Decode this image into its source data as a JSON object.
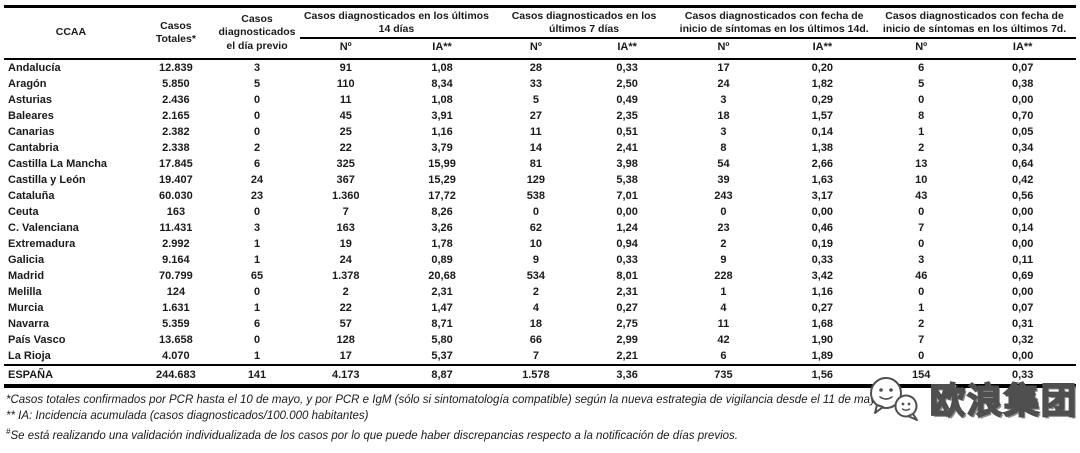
{
  "table": {
    "columns": [
      {
        "label": "CCAA"
      },
      {
        "label": "Casos Totales*"
      },
      {
        "label": "Casos diagnosticados el día previo"
      },
      {
        "label": "Casos diagnosticados en los últimos 14 días",
        "sub": [
          "Nº",
          "IA**"
        ]
      },
      {
        "label": "Casos diagnosticados en los últimos 7 días",
        "sub": [
          "Nº",
          "IA**"
        ]
      },
      {
        "label": "Casos diagnosticados con fecha de inicio de síntomas en los últimos 14d.",
        "sub": [
          "Nº",
          "IA**"
        ]
      },
      {
        "label": "Casos diagnosticados con fecha de inicio de síntomas en los últimos 7d.",
        "sub": [
          "Nº",
          "IA**"
        ]
      }
    ],
    "rows": [
      [
        "Andalucía",
        "12.839",
        "3",
        "91",
        "1,08",
        "28",
        "0,33",
        "17",
        "0,20",
        "6",
        "0,07"
      ],
      [
        "Aragón",
        "5.850",
        "5",
        "110",
        "8,34",
        "33",
        "2,50",
        "24",
        "1,82",
        "5",
        "0,38"
      ],
      [
        "Asturias",
        "2.436",
        "0",
        "11",
        "1,08",
        "5",
        "0,49",
        "3",
        "0,29",
        "0",
        "0,00"
      ],
      [
        "Baleares",
        "2.165",
        "0",
        "45",
        "3,91",
        "27",
        "2,35",
        "18",
        "1,57",
        "8",
        "0,70"
      ],
      [
        "Canarias",
        "2.382",
        "0",
        "25",
        "1,16",
        "11",
        "0,51",
        "3",
        "0,14",
        "1",
        "0,05"
      ],
      [
        "Cantabria",
        "2.338",
        "2",
        "22",
        "3,79",
        "14",
        "2,41",
        "8",
        "1,38",
        "2",
        "0,34"
      ],
      [
        "Castilla La Mancha",
        "17.845",
        "6",
        "325",
        "15,99",
        "81",
        "3,98",
        "54",
        "2,66",
        "13",
        "0,64"
      ],
      [
        "Castilla y León",
        "19.407",
        "24",
        "367",
        "15,29",
        "129",
        "5,38",
        "39",
        "1,63",
        "10",
        "0,42"
      ],
      [
        "Cataluña",
        "60.030",
        "23",
        "1.360",
        "17,72",
        "538",
        "7,01",
        "243",
        "3,17",
        "43",
        "0,56"
      ],
      [
        "Ceuta",
        "163",
        "0",
        "7",
        "8,26",
        "0",
        "0,00",
        "0",
        "0,00",
        "0",
        "0,00"
      ],
      [
        "C. Valenciana",
        "11.431",
        "3",
        "163",
        "3,26",
        "62",
        "1,24",
        "23",
        "0,46",
        "7",
        "0,14"
      ],
      [
        "Extremadura",
        "2.992",
        "1",
        "19",
        "1,78",
        "10",
        "0,94",
        "2",
        "0,19",
        "0",
        "0,00"
      ],
      [
        "Galicia",
        "9.164",
        "1",
        "24",
        "0,89",
        "9",
        "0,33",
        "9",
        "0,33",
        "3",
        "0,11"
      ],
      [
        "Madrid",
        "70.799",
        "65",
        "1.378",
        "20,68",
        "534",
        "8,01",
        "228",
        "3,42",
        "46",
        "0,69"
      ],
      [
        "Melilla",
        "124",
        "0",
        "2",
        "2,31",
        "2",
        "2,31",
        "1",
        "1,16",
        "0",
        "0,00"
      ],
      [
        "Murcia",
        "1.631",
        "1",
        "22",
        "1,47",
        "4",
        "0,27",
        "4",
        "0,27",
        "1",
        "0,07"
      ],
      [
        "Navarra",
        "5.359",
        "6",
        "57",
        "8,71",
        "18",
        "2,75",
        "11",
        "1,68",
        "2",
        "0,31"
      ],
      [
        "País Vasco",
        "13.658",
        "0",
        "128",
        "5,80",
        "66",
        "2,99",
        "42",
        "1,90",
        "7",
        "0,32"
      ],
      [
        "La Rioja",
        "4.070",
        "1",
        "17",
        "5,37",
        "7",
        "2,21",
        "6",
        "1,89",
        "0",
        "0,00"
      ]
    ],
    "total_row": [
      "ESPAÑA",
      "244.683",
      "141",
      "4.173",
      "8,87",
      "1.578",
      "3,36",
      "735",
      "1,56",
      "154",
      "0,33"
    ]
  },
  "footnotes": [
    {
      "marker": "*",
      "text": "Casos totales confirmados por PCR hasta el 10 de mayo, y por PCR e IgM (sólo si sintomatología compatible) según la nueva estrategia de vigilancia desde el 11 de mayo."
    },
    {
      "marker": "** ",
      "text": "IA: Incidencia acumulada (casos diagnosticados/100.000 habitantes)"
    },
    {
      "marker": "#",
      "text": "Se está realizando una validación individualizada de los casos por lo que puede haber discrepancias respecto a la notificación de días previos."
    }
  ],
  "watermark": {
    "text": "欧浪集团",
    "icon": "wechat-bubbles-icon",
    "text_color": "#ffffff",
    "outline_color": "#4f4f4f"
  },
  "colors": {
    "border": "#000000",
    "text": "#1a1a1a",
    "background": "#ffffff"
  }
}
